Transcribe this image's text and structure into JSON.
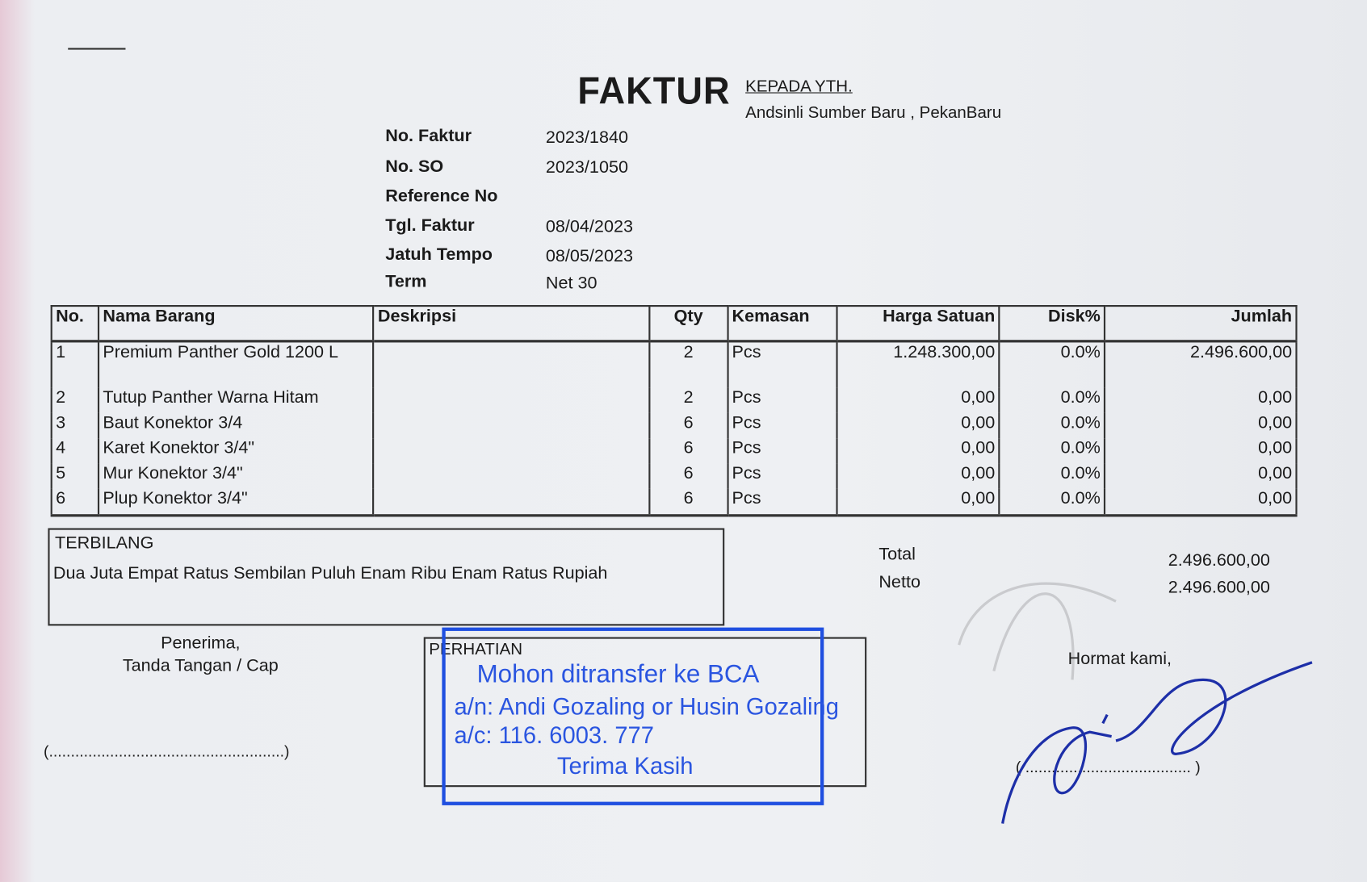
{
  "header": {
    "title": "FAKTUR",
    "to_label": "KEPADA YTH.",
    "customer": "Andsinli Sumber Baru , PekanBaru"
  },
  "meta": [
    {
      "label": "No. Faktur",
      "value": "2023/1840"
    },
    {
      "label": "No. SO",
      "value": "2023/1050"
    },
    {
      "label": "Reference No",
      "value": ""
    },
    {
      "label": "Tgl. Faktur",
      "value": "08/04/2023"
    },
    {
      "label": "Jatuh Tempo",
      "value": "08/05/2023"
    },
    {
      "label": "Term",
      "value": "Net 30"
    }
  ],
  "table": {
    "headers": [
      "No.",
      "Nama Barang",
      "Deskripsi",
      "Qty",
      "Kemasan",
      "Harga Satuan",
      "Disk%",
      "Jumlah"
    ],
    "rows": [
      [
        "1",
        "Premium Panther Gold 1200 L",
        "",
        "2",
        "Pcs",
        "1.248.300,00",
        "0.0%",
        "2.496.600,00"
      ],
      [
        "2",
        "Tutup Panther Warna Hitam",
        "",
        "2",
        "Pcs",
        "0,00",
        "0.0%",
        "0,00"
      ],
      [
        "3",
        "Baut Konektor 3/4",
        "",
        "6",
        "Pcs",
        "0,00",
        "0.0%",
        "0,00"
      ],
      [
        "4",
        "Karet Konektor 3/4\"",
        "",
        "6",
        "Pcs",
        "0,00",
        "0.0%",
        "0,00"
      ],
      [
        "5",
        "Mur Konektor 3/4\"",
        "",
        "6",
        "Pcs",
        "0,00",
        "0.0%",
        "0,00"
      ],
      [
        "6",
        "Plup Konektor 3/4\"",
        "",
        "6",
        "Pcs",
        "0,00",
        "0.0%",
        "0,00"
      ]
    ]
  },
  "terbilang": {
    "label": "TERBILANG",
    "text": "Dua Juta Empat Ratus Sembilan Puluh Enam Ribu Enam Ratus Rupiah"
  },
  "totals": {
    "total_label": "Total",
    "total": "2.496.600,00",
    "netto_label": "Netto",
    "netto": "2.496.600,00"
  },
  "receiver": {
    "line1": "Penerima,",
    "line2": "Tanda Tangan / Cap",
    "sign_line": "(......................................................)"
  },
  "attention": {
    "label": "PERHATIAN"
  },
  "stamp": {
    "line1": "Mohon ditransfer ke BCA",
    "line2": "a/n: Andi Gozaling or Husin Gozaling",
    "line3": "a/c: 116. 6003. 777",
    "line4": "Terima Kasih",
    "color": "#2a55e0"
  },
  "sender": {
    "label": "Hormat kami,",
    "sign_line": "( ...................................... )"
  }
}
